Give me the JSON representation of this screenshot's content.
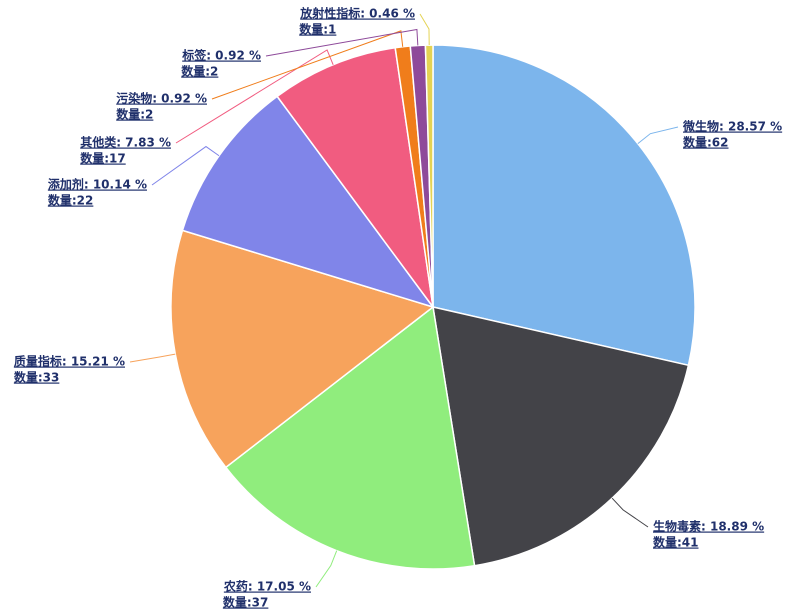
{
  "chart_data": {
    "type": "pie",
    "categories": [
      "微生物: 28.57 %",
      "生物毒素: 18.89 %",
      "农药: 17.05 %",
      "质量指标: 15.21 %",
      "添加剂: 10.14 %",
      "其他类: 7.83 %",
      "污染物: 0.92 %",
      "标签: 0.92 %",
      "放射性指标: 0.46 %"
    ],
    "values": [
      62,
      41,
      37,
      33,
      22,
      17,
      2,
      2,
      1
    ],
    "value_labels": [
      "数量:62",
      "数量:41",
      "数量:37",
      "数量:33",
      "数量:22",
      "数量:17",
      "数量:2",
      "数量:2",
      "数量:1"
    ],
    "colors": [
      "#7cb5ec",
      "#434348",
      "#90ed7d",
      "#f7a35c",
      "#8085e9",
      "#f15c80",
      "#f07d1b",
      "#8e4a9a",
      "#e4d354"
    ]
  }
}
